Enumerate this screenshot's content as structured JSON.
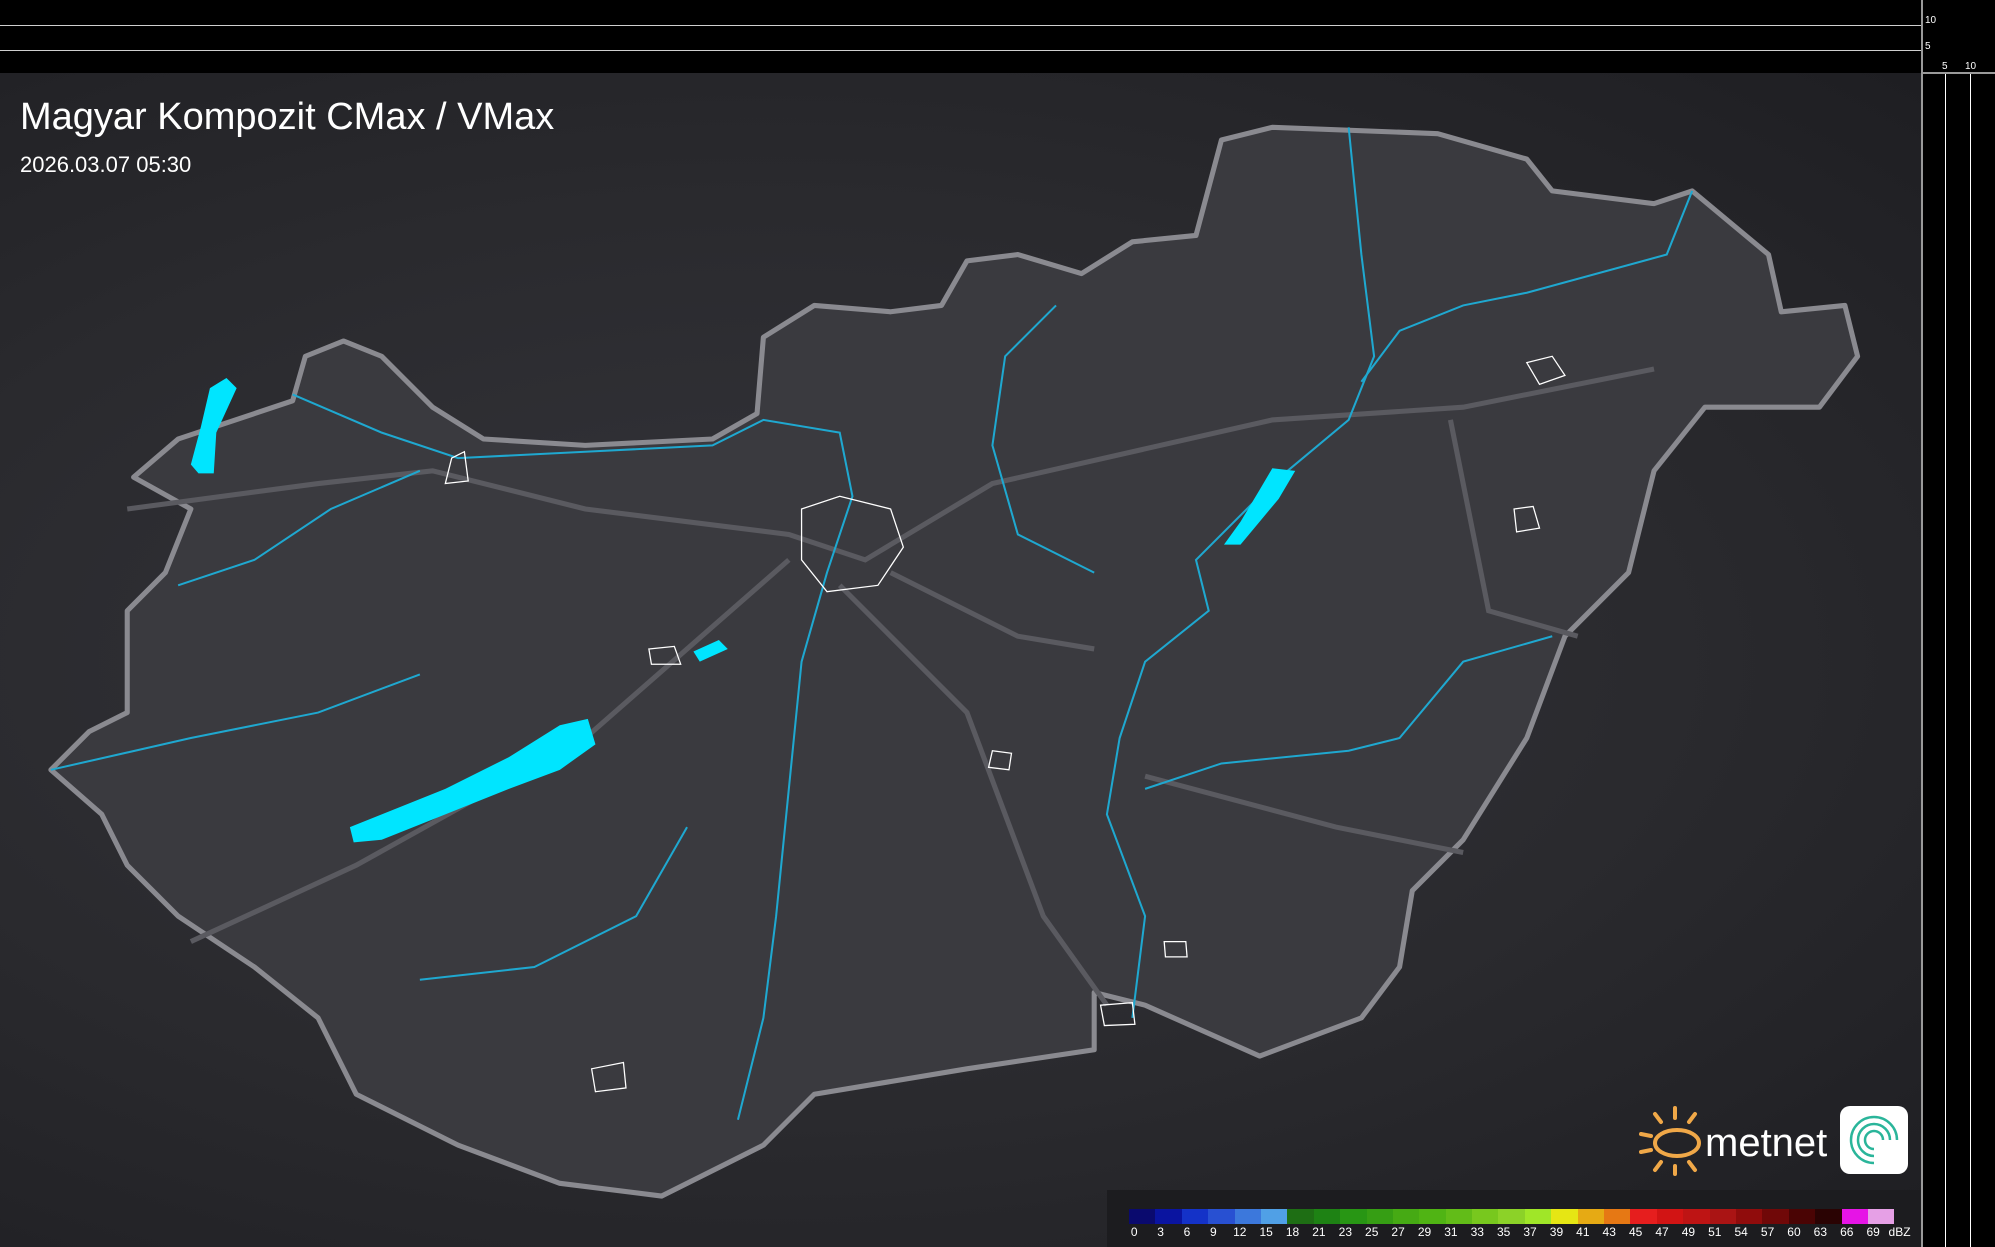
{
  "header": {
    "title": "Magyar Kompozit CMax / VMax",
    "timestamp": "2026.03.07 05:30"
  },
  "ruler": {
    "vertical_ticks": [
      "10",
      "5"
    ],
    "horizontal_ticks": [
      "5",
      "10"
    ]
  },
  "legend": {
    "unit": "dBZ",
    "labels": [
      "0",
      "3",
      "6",
      "9",
      "12",
      "15",
      "18",
      "21",
      "23",
      "25",
      "27",
      "29",
      "31",
      "33",
      "35",
      "37",
      "39",
      "41",
      "43",
      "45",
      "47",
      "49",
      "51",
      "54",
      "57",
      "60",
      "63",
      "66",
      "69"
    ],
    "colors": [
      "#0a0a6e",
      "#0a14a0",
      "#1432c8",
      "#2850d2",
      "#3c78dc",
      "#50a0e6",
      "#1e6e14",
      "#1e8214",
      "#289614",
      "#369e14",
      "#46aa14",
      "#50b414",
      "#62bc18",
      "#78c81e",
      "#8cd228",
      "#a0e628",
      "#e6e614",
      "#e6aa14",
      "#e67814",
      "#e61e1e",
      "#d21414",
      "#be1414",
      "#aa1414",
      "#900c0c",
      "#700808",
      "#4a0404",
      "#2a0303",
      "#e614e6",
      "#e6a0e6",
      "#8ce6e6"
    ]
  },
  "logo": {
    "brand": "metnet"
  },
  "colors": {
    "water": "#00e5ff",
    "river": "#1fa8d0",
    "border": "#8a8a90",
    "country": "#3a3a3f"
  }
}
